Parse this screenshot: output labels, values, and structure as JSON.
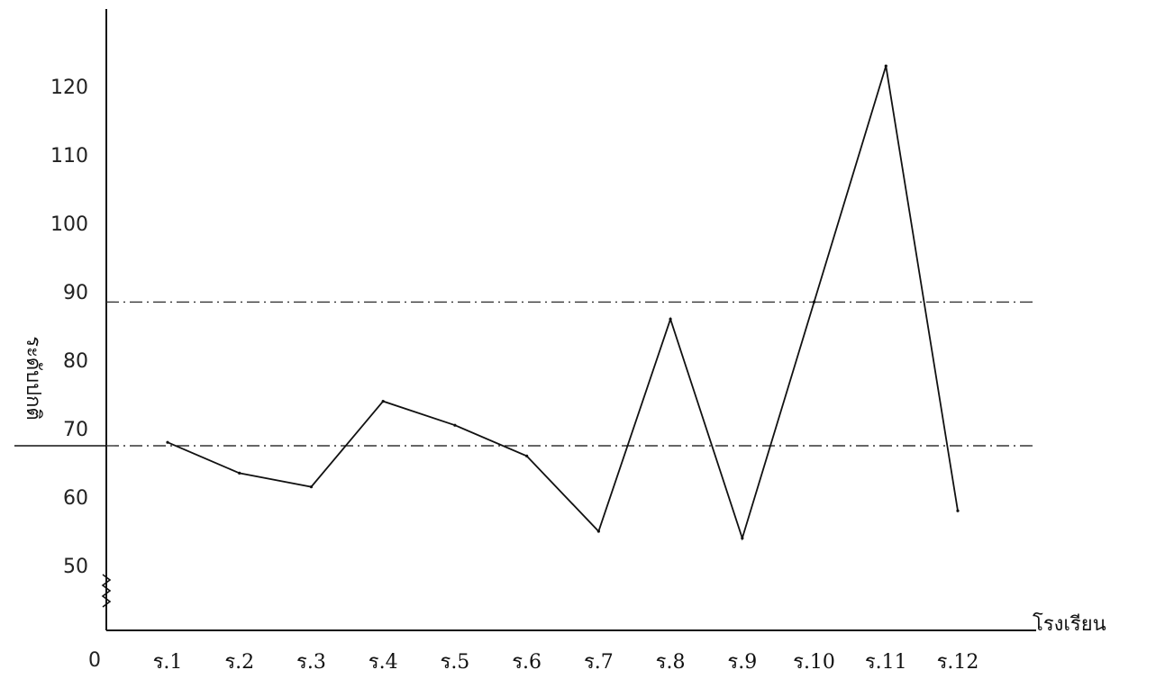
{
  "chart_data": {
    "type": "line",
    "title": "",
    "xlabel": "โรงเรียน",
    "ylabel": "ระดับปกติ",
    "origin_label": "0",
    "categories": [
      "ร.1",
      "ร.2",
      "ร.3",
      "ร.4",
      "ร.5",
      "ร.6",
      "ร.7",
      "ร.8",
      "ร.9",
      "ร.10",
      "ร.11",
      "ร.12"
    ],
    "yticks": [
      50,
      60,
      70,
      80,
      90,
      100,
      110,
      120
    ],
    "ylim": [
      40,
      125
    ],
    "series": [
      {
        "values": [
          68,
          63.5,
          61.5,
          74,
          70.5,
          66,
          55,
          86,
          54,
          88.5,
          123,
          58
        ]
      }
    ],
    "reference_lines": [
      88.5,
      67.5
    ],
    "axis_break": true,
    "grid": false,
    "line_color": "#111111",
    "reference_line_style": "dash-dot"
  }
}
